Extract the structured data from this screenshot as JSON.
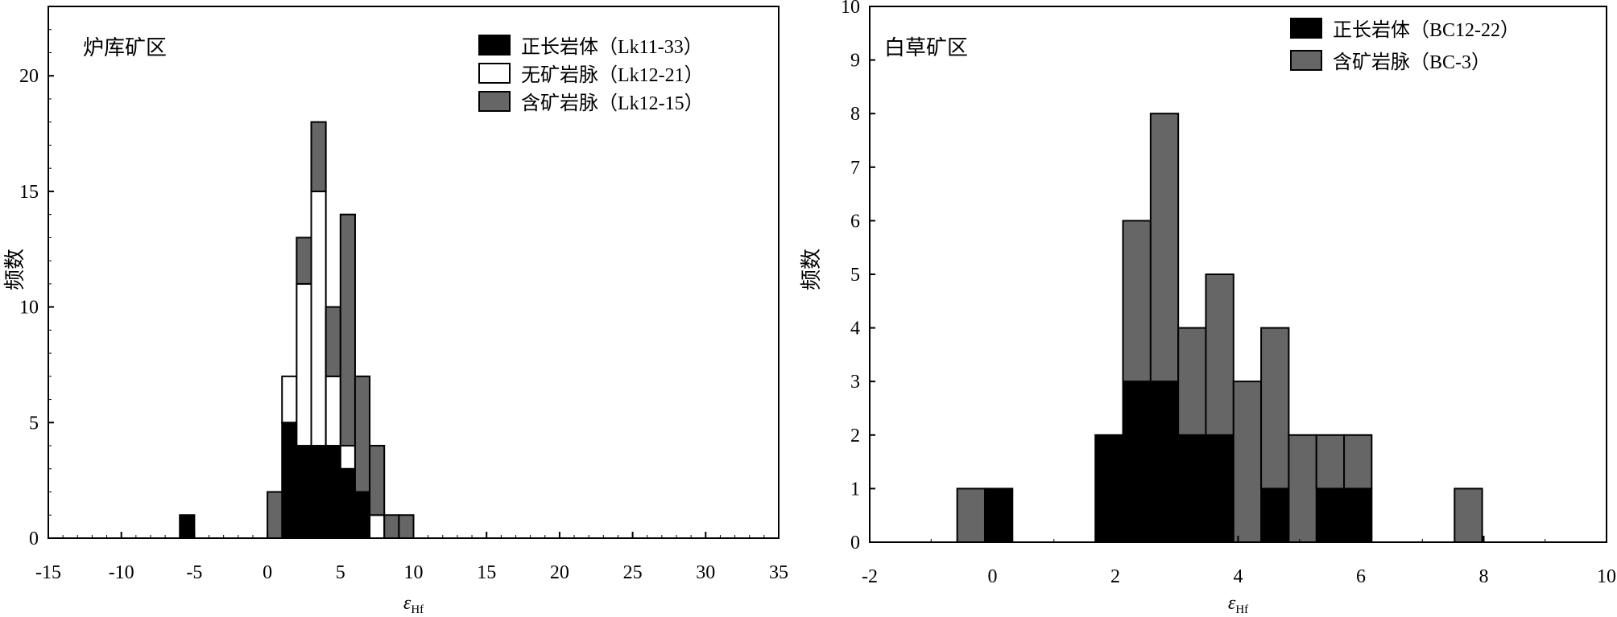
{
  "chart_data": [
    {
      "type": "bar",
      "stacked": true,
      "annotation": "炉库矿区",
      "xlabel": "εHf",
      "ylabel": "频数",
      "xlim": [
        -15,
        35
      ],
      "ylim": [
        0,
        23
      ],
      "xticks": [
        -15,
        -10,
        -5,
        0,
        5,
        10,
        15,
        20,
        25,
        30,
        35
      ],
      "yticks": [
        0,
        5,
        10,
        15,
        20
      ],
      "bin_width": 1,
      "legend_position": "top-right",
      "series": [
        {
          "name": "正长岩体（Lk11-33）",
          "color": "#000000",
          "x": [
            -5.5,
            1.5,
            2.5,
            3.5,
            4.5,
            5.5,
            6.5
          ],
          "values": [
            1,
            5,
            4,
            4,
            4,
            3,
            2
          ]
        },
        {
          "name": "无矿岩脉（Lk12-21）",
          "color": "#ffffff",
          "x": [
            1.5,
            2.5,
            3.5,
            4.5,
            5.5,
            7.5
          ],
          "values": [
            2,
            7,
            11,
            3,
            1,
            1
          ]
        },
        {
          "name": "含矿岩脉（Lk12-15）",
          "color": "#666666",
          "x": [
            0.5,
            2.5,
            3.5,
            4.5,
            5.5,
            6.5,
            7.5,
            8.5,
            9.5
          ],
          "values": [
            2,
            2,
            3,
            3,
            10,
            5,
            3,
            1,
            1
          ]
        }
      ]
    },
    {
      "type": "bar",
      "stacked": true,
      "annotation": "白草矿区",
      "xlabel": "εHf",
      "ylabel": "频数",
      "xlim": [
        -2,
        10
      ],
      "ylim": [
        0,
        10
      ],
      "xticks": [
        -2,
        0,
        2,
        4,
        6,
        8,
        10
      ],
      "yticks": [
        0,
        1,
        2,
        3,
        4,
        5,
        6,
        7,
        8,
        9,
        10
      ],
      "bin_width": 0.45,
      "legend_position": "top-right",
      "series": [
        {
          "name": "正长岩体（BC12-22）",
          "color": "#000000",
          "x": [
            0.1,
            1.9,
            2.35,
            2.8,
            3.25,
            3.7,
            4.6,
            5.5,
            5.95
          ],
          "values": [
            1,
            2,
            3,
            3,
            2,
            2,
            1,
            1,
            1
          ]
        },
        {
          "name": "含矿岩脉（BC-3）",
          "color": "#666666",
          "x": [
            -0.35,
            2.35,
            2.8,
            3.25,
            3.7,
            4.15,
            4.6,
            5.05,
            5.5,
            5.95,
            7.75
          ],
          "values": [
            1,
            3,
            5,
            2,
            3,
            3,
            3,
            2,
            1,
            1,
            1
          ]
        }
      ]
    }
  ]
}
